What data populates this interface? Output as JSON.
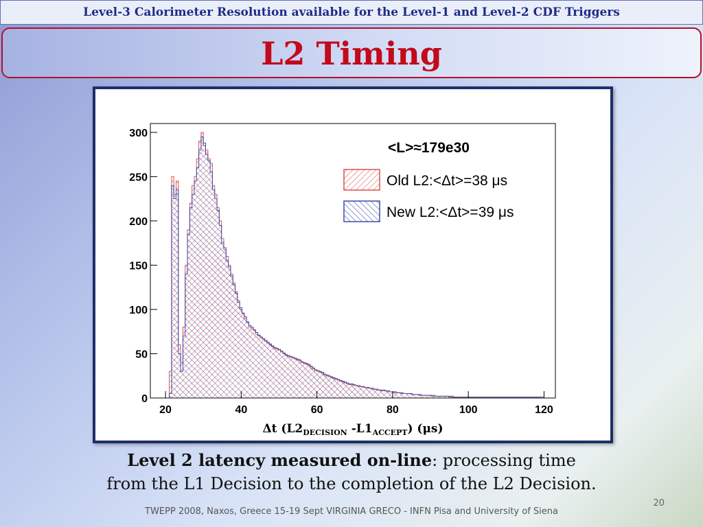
{
  "header": {
    "banner": "Level-3 Calorimeter Resolution available for the Level-1 and Level-2 CDF Triggers",
    "title": "L2 Timing"
  },
  "caption": {
    "bold_part": "Level 2 latency measured on-line",
    "rest_line1": ": processing time",
    "line2": "from the L1 Decision to the completion of the L2 Decision."
  },
  "footer": {
    "text": "TWEPP 2008, Naxos, Greece 15-19 Sept VIRGINIA GRECO - INFN Pisa and University of Siena",
    "page_number": "20"
  },
  "chart_data": {
    "type": "histogram",
    "title": "<L>≈179e30",
    "xlabel_main": "Δt (L2",
    "xlabel_sub1": "DECISION",
    "xlabel_mid": " -L1",
    "xlabel_sub2": "ACCEPT",
    "xlabel_end": ") (μs)",
    "xlim": [
      16,
      123
    ],
    "ylim": [
      0,
      310
    ],
    "xticks": [
      20,
      40,
      60,
      80,
      100,
      120
    ],
    "yticks": [
      0,
      50,
      100,
      150,
      200,
      250,
      300
    ],
    "bin_start": 21,
    "bin_width": 0.6,
    "legend_position": "top-right",
    "series": [
      {
        "name": "Old L2:<Δt>=38 μs",
        "color": "#d9534f",
        "hatch": "backslash",
        "values": [
          30,
          250,
          230,
          245,
          60,
          40,
          80,
          150,
          190,
          220,
          240,
          250,
          270,
          290,
          300,
          285,
          280,
          270,
          265,
          240,
          230,
          215,
          200,
          180,
          170,
          160,
          150,
          140,
          130,
          120,
          110,
          100,
          95,
          90,
          85,
          80,
          78,
          76,
          72,
          70,
          68,
          66,
          64,
          62,
          60,
          58,
          56,
          55,
          54,
          52,
          50,
          48,
          47,
          46,
          45,
          44,
          43,
          42,
          40,
          39,
          38,
          37,
          35,
          33,
          31,
          30,
          29,
          28,
          26,
          25,
          24,
          23,
          22,
          21,
          20,
          19,
          18,
          17,
          16,
          15,
          15,
          14,
          14,
          13,
          13,
          12,
          12,
          11,
          11,
          10,
          10,
          9,
          9,
          8,
          8,
          8,
          7,
          7,
          7,
          6,
          6,
          6,
          5,
          5,
          5,
          5,
          4,
          4,
          4,
          4,
          3,
          3,
          3,
          3,
          3,
          2,
          2,
          2,
          2,
          2,
          2,
          2,
          2,
          1,
          1,
          1,
          1,
          1,
          1,
          1,
          1,
          1,
          1,
          1,
          1,
          1,
          1,
          1,
          1,
          1,
          1,
          1,
          1,
          1,
          1,
          1,
          1,
          1,
          1,
          1,
          1,
          1,
          1,
          1,
          1,
          1,
          1,
          1,
          1,
          1,
          1,
          1,
          1,
          1
        ]
      },
      {
        "name": "New L2:<Δt>=39 μs",
        "color": "#3d4aa8",
        "hatch": "slash",
        "values": [
          5,
          240,
          225,
          235,
          50,
          30,
          70,
          140,
          185,
          215,
          230,
          245,
          260,
          280,
          295,
          288,
          275,
          268,
          255,
          235,
          225,
          212,
          195,
          175,
          168,
          155,
          148,
          138,
          128,
          118,
          108,
          102,
          96,
          92,
          86,
          82,
          80,
          77,
          74,
          71,
          69,
          67,
          65,
          63,
          61,
          59,
          57,
          56,
          55,
          53,
          51,
          49,
          48,
          47,
          46,
          45,
          44,
          43,
          41,
          40,
          39,
          38,
          36,
          34,
          32,
          31,
          30,
          29,
          27,
          26,
          25,
          24,
          23,
          22,
          21,
          20,
          19,
          18,
          17,
          16,
          16,
          15,
          14,
          14,
          13,
          13,
          12,
          12,
          11,
          11,
          10,
          10,
          9,
          9,
          9,
          8,
          8,
          7,
          7,
          7,
          6,
          6,
          6,
          5,
          5,
          5,
          5,
          4,
          4,
          4,
          4,
          3,
          3,
          3,
          3,
          3,
          3,
          2,
          2,
          2,
          2,
          2,
          2,
          2,
          2,
          1,
          1,
          1,
          1,
          1,
          1,
          1,
          1,
          1,
          1,
          1,
          1,
          1,
          1,
          1,
          1,
          1,
          1,
          1,
          1,
          1,
          1,
          1,
          1,
          1,
          1,
          1,
          1,
          1,
          1,
          1,
          1,
          1,
          1,
          1,
          1,
          1,
          1,
          1,
          1
        ]
      }
    ]
  }
}
